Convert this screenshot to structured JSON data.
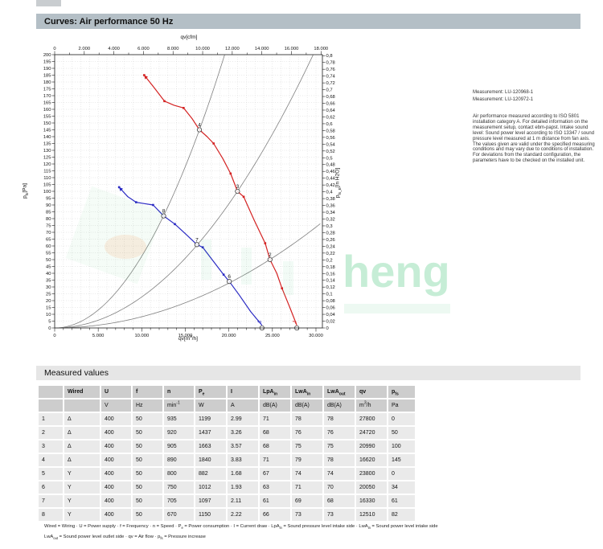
{
  "page": {
    "title": "Curves: Air performance 50 Hz",
    "section2_title": "Measured values"
  },
  "notes": {
    "measurement1": "Measurement: LU-120968-1",
    "measurement2": "Measurement: LU-120972-1",
    "paragraph": "Air performance measured according to ISO 5801 installation category A. For detailed information on the measurement setup, contact ebm-papst. Intake sound level: Sound power level according to ISO 13347 / sound pressure level measured at 1 m distance from fan axis. The values given are valid under the specified measuring conditions and may vary due to conditions of installation. For deviations from the standard configuration, the parameters have to be checked on the installed unit."
  },
  "watermark": {
    "text": "heng",
    "color": "#2fbe6b"
  },
  "chart_data": {
    "type": "line",
    "title": "Curves: Air performance 50 Hz",
    "grid": "dotted",
    "x_bottom": {
      "label_html": "qv[m<sup>3</sup>/h]",
      "min": 0,
      "max": 30740,
      "major_step": 5000,
      "minor_step": 1000,
      "tick_labels": [
        "0",
        "5.000",
        "10.000",
        "15.000",
        "20.000",
        "25.000",
        "30.000"
      ]
    },
    "x_top": {
      "label_html": "qv[cfm]",
      "min": 0,
      "max": 18000,
      "major_step": 2000,
      "minor_step": 1000,
      "m3h_per_cfm": 1.699,
      "tick_labels": [
        "0",
        "2.000",
        "4.000",
        "6.000",
        "8.000",
        "10.000",
        "12.000",
        "14.000",
        "16.000",
        "18.000"
      ]
    },
    "y_left": {
      "label_html": "p<sub>fs</sub>[Pa]",
      "min": 0,
      "max": 200,
      "step": 5,
      "tick_labels": [
        "200",
        "195",
        "190",
        "185",
        "180",
        "175",
        "170",
        "165",
        "160",
        "155",
        "150",
        "145",
        "140",
        "135",
        "130",
        "125",
        "120",
        "115",
        "110",
        "105",
        "100",
        "95",
        "90",
        "85",
        "80",
        "75",
        "70",
        "65",
        "60",
        "55",
        "50",
        "45",
        "40",
        "35",
        "30",
        "25",
        "20",
        "15",
        "10",
        "5",
        "0"
      ]
    },
    "y_right": {
      "label_html": "p<sub>fs_E</sub>[In H2O]",
      "min": 0,
      "max": 0.8,
      "step": 0.02,
      "pa_per_unit": 249.089,
      "tick_labels": [
        "0,8",
        "0,78",
        "0,76",
        "0,74",
        "0,72",
        "0,7",
        "0,68",
        "0,66",
        "0,64",
        "0,62",
        "0,6",
        "0,58",
        "0,56",
        "0,54",
        "0,52",
        "0,5",
        "0,48",
        "0,46",
        "0,44",
        "0,42",
        "0,4",
        "0,38",
        "0,36",
        "0,34",
        "0,32",
        "0,3",
        "0,28",
        "0,26",
        "0,24",
        "0,22",
        "0,2",
        "0,18",
        "0,16",
        "0,14",
        "0,12",
        "0,1",
        "0,08",
        "0,06",
        "0,04",
        "0,02",
        "0"
      ]
    },
    "series": [
      {
        "name": "Δ",
        "color": "#d42222",
        "points": [
          [
            10280,
            185
          ],
          [
            11400,
            176
          ],
          [
            12600,
            166
          ],
          [
            13700,
            163
          ],
          [
            14800,
            161
          ],
          [
            15800,
            153
          ],
          [
            16620,
            145
          ],
          [
            17500,
            140
          ],
          [
            18250,
            135
          ],
          [
            19300,
            124
          ],
          [
            20200,
            113
          ],
          [
            20990,
            100
          ],
          [
            21700,
            96
          ],
          [
            22900,
            79
          ],
          [
            24170,
            62
          ],
          [
            24720,
            50
          ],
          [
            25500,
            40
          ],
          [
            26100,
            29
          ],
          [
            27000,
            15
          ],
          [
            27800,
            2
          ]
        ],
        "markers": [
          [
            10280,
            185
          ],
          [
            12600,
            166
          ],
          [
            14800,
            161
          ],
          [
            18250,
            135
          ],
          [
            20200,
            113
          ],
          [
            21700,
            96
          ],
          [
            24170,
            62
          ],
          [
            26100,
            29
          ]
        ]
      },
      {
        "name": "Y",
        "color": "#2b2bc4",
        "points": [
          [
            7400,
            103
          ],
          [
            8400,
            96
          ],
          [
            9350,
            92
          ],
          [
            10300,
            91
          ],
          [
            11300,
            90
          ],
          [
            12510,
            82
          ],
          [
            13800,
            76
          ],
          [
            15000,
            69
          ],
          [
            16330,
            61
          ],
          [
            17000,
            59
          ],
          [
            18200,
            49
          ],
          [
            19400,
            39
          ],
          [
            20050,
            34
          ],
          [
            21200,
            24
          ],
          [
            22500,
            12
          ],
          [
            23800,
            2
          ]
        ],
        "markers": [
          [
            7400,
            103
          ],
          [
            9350,
            92
          ],
          [
            11300,
            90
          ],
          [
            13800,
            76
          ],
          [
            17000,
            59
          ],
          [
            19400,
            39
          ]
        ]
      }
    ],
    "system_curves": [
      {
        "k": 5.25e-07
      },
      {
        "k": 2.27e-07
      },
      {
        "k": 8.2e-08
      }
    ],
    "operating_points": [
      {
        "n": "1",
        "qv": 27800,
        "pfs": 0,
        "series": 0,
        "rotated": true
      },
      {
        "n": "2",
        "qv": 24720,
        "pfs": 50,
        "series": 0,
        "rotated": false
      },
      {
        "n": "3",
        "qv": 20990,
        "pfs": 100,
        "series": 0,
        "rotated": false
      },
      {
        "n": "4",
        "qv": 16620,
        "pfs": 145,
        "series": 0,
        "rotated": false
      },
      {
        "n": "5",
        "qv": 23800,
        "pfs": 0,
        "series": 1,
        "rotated": true
      },
      {
        "n": "6",
        "qv": 20050,
        "pfs": 34,
        "series": 1,
        "rotated": false
      },
      {
        "n": "7",
        "qv": 16330,
        "pfs": 61,
        "series": 1,
        "rotated": false
      },
      {
        "n": "8",
        "qv": 12510,
        "pfs": 82,
        "series": 1,
        "rotated": false
      }
    ]
  },
  "table": {
    "headers_html": [
      "",
      "Wired",
      "U",
      "f",
      "n",
      "P<sub>e</sub>",
      "I",
      "LpA<sub>in</sub>",
      "LwA<sub>in</sub>",
      "LwA<sub>out</sub>",
      "qv",
      "p<sub>fs</sub>"
    ],
    "units_html": [
      "",
      "",
      "V",
      "Hz",
      "min<sup>-1</sup>",
      "W",
      "A",
      "dB(A)",
      "dB(A)",
      "dB(A)",
      "m<sup>3</sup>/h",
      "Pa"
    ],
    "rows": [
      [
        "1",
        "Δ",
        "400",
        "50",
        "935",
        "1199",
        "2.99",
        "71",
        "78",
        "78",
        "27800",
        "0"
      ],
      [
        "2",
        "Δ",
        "400",
        "50",
        "920",
        "1437",
        "3.26",
        "68",
        "76",
        "76",
        "24720",
        "50"
      ],
      [
        "3",
        "Δ",
        "400",
        "50",
        "905",
        "1663",
        "3.57",
        "68",
        "75",
        "75",
        "20990",
        "100"
      ],
      [
        "4",
        "Δ",
        "400",
        "50",
        "890",
        "1840",
        "3.83",
        "71",
        "79",
        "78",
        "16620",
        "145"
      ],
      [
        "5",
        "Y",
        "400",
        "50",
        "800",
        "882",
        "1.68",
        "67",
        "74",
        "74",
        "23800",
        "0"
      ],
      [
        "6",
        "Y",
        "400",
        "50",
        "750",
        "1012",
        "1.93",
        "63",
        "71",
        "70",
        "20050",
        "34"
      ],
      [
        "7",
        "Y",
        "400",
        "50",
        "705",
        "1097",
        "2.11",
        "61",
        "69",
        "68",
        "16330",
        "61"
      ],
      [
        "8",
        "Y",
        "400",
        "50",
        "670",
        "1150",
        "2.22",
        "66",
        "73",
        "73",
        "12510",
        "82"
      ]
    ]
  },
  "footnotes": {
    "line1_html": "Wired = Wiring · U = Power supply · f = Frequency · n = Speed · P<sub>e</sub> = Power consumption · I = Current draw · LpA<sub>in</sub> = Sound pressure level intake side · LwA<sub>in</sub> = Sound power level intake side",
    "line2_html": "LwA<sub>out</sub> = Sound power level outlet side · qv = Air flow · p<sub>fs</sub> = Pressure increase"
  }
}
